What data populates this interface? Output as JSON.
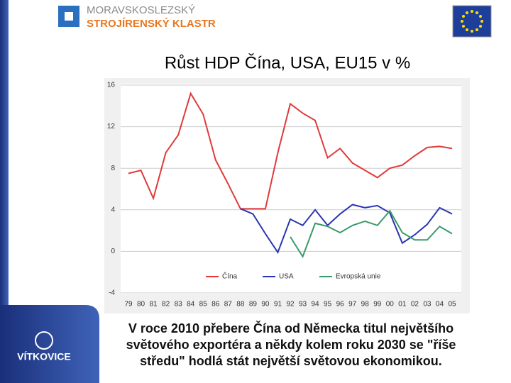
{
  "header": {
    "line1": "MORAVSKOSLEZSKÝ",
    "line2": "STROJÍRENSKÝ KLASTR"
  },
  "chart_data": {
    "type": "line",
    "title": "Růst HDP Čína, USA, EU15 v %",
    "categories": [
      "79",
      "80",
      "81",
      "82",
      "83",
      "84",
      "85",
      "86",
      "87",
      "88",
      "89",
      "90",
      "91",
      "92",
      "93",
      "94",
      "95",
      "96",
      "97",
      "98",
      "99",
      "00",
      "01",
      "02",
      "03",
      "04",
      "05"
    ],
    "series": [
      {
        "name": "Čína",
        "color": "#e03a3a",
        "values": [
          7.5,
          7.8,
          5.1,
          9.5,
          11.2,
          15.2,
          13.2,
          8.8,
          6.5,
          4.1,
          4.1,
          4.1,
          9.5,
          14.2,
          13.3,
          12.6,
          9.0,
          9.9,
          8.5,
          7.8,
          7.1,
          8.0,
          8.3,
          9.2,
          10.0,
          10.1,
          9.9
        ]
      },
      {
        "name": "USA",
        "color": "#2a35b0",
        "values": [
          null,
          null,
          null,
          null,
          null,
          null,
          null,
          null,
          null,
          4.1,
          3.6,
          1.7,
          -0.1,
          3.1,
          2.5,
          4.0,
          2.5,
          3.6,
          4.5,
          4.2,
          4.4,
          3.7,
          0.8,
          1.6,
          2.6,
          4.2,
          3.6
        ]
      },
      {
        "name": "Evropská unie",
        "color": "#3a9a6a",
        "values": [
          null,
          null,
          null,
          null,
          null,
          null,
          null,
          null,
          null,
          null,
          null,
          null,
          null,
          1.4,
          -0.5,
          2.7,
          2.4,
          1.8,
          2.5,
          2.9,
          2.5,
          3.9,
          1.8,
          1.1,
          1.1,
          2.4,
          1.7
        ]
      }
    ],
    "ylim": [
      -4,
      16
    ],
    "yticks": [
      16,
      12,
      8,
      4,
      0,
      -4
    ],
    "grid": true
  },
  "caption": "V roce 2010 přebere Čína od Německa titul největšího světového exportéra a někdy kolem roku 2030 se \"říše středu\" hodlá stát největší světovou ekonomikou.",
  "footer": {
    "logo": "VÍTKOVICE"
  }
}
